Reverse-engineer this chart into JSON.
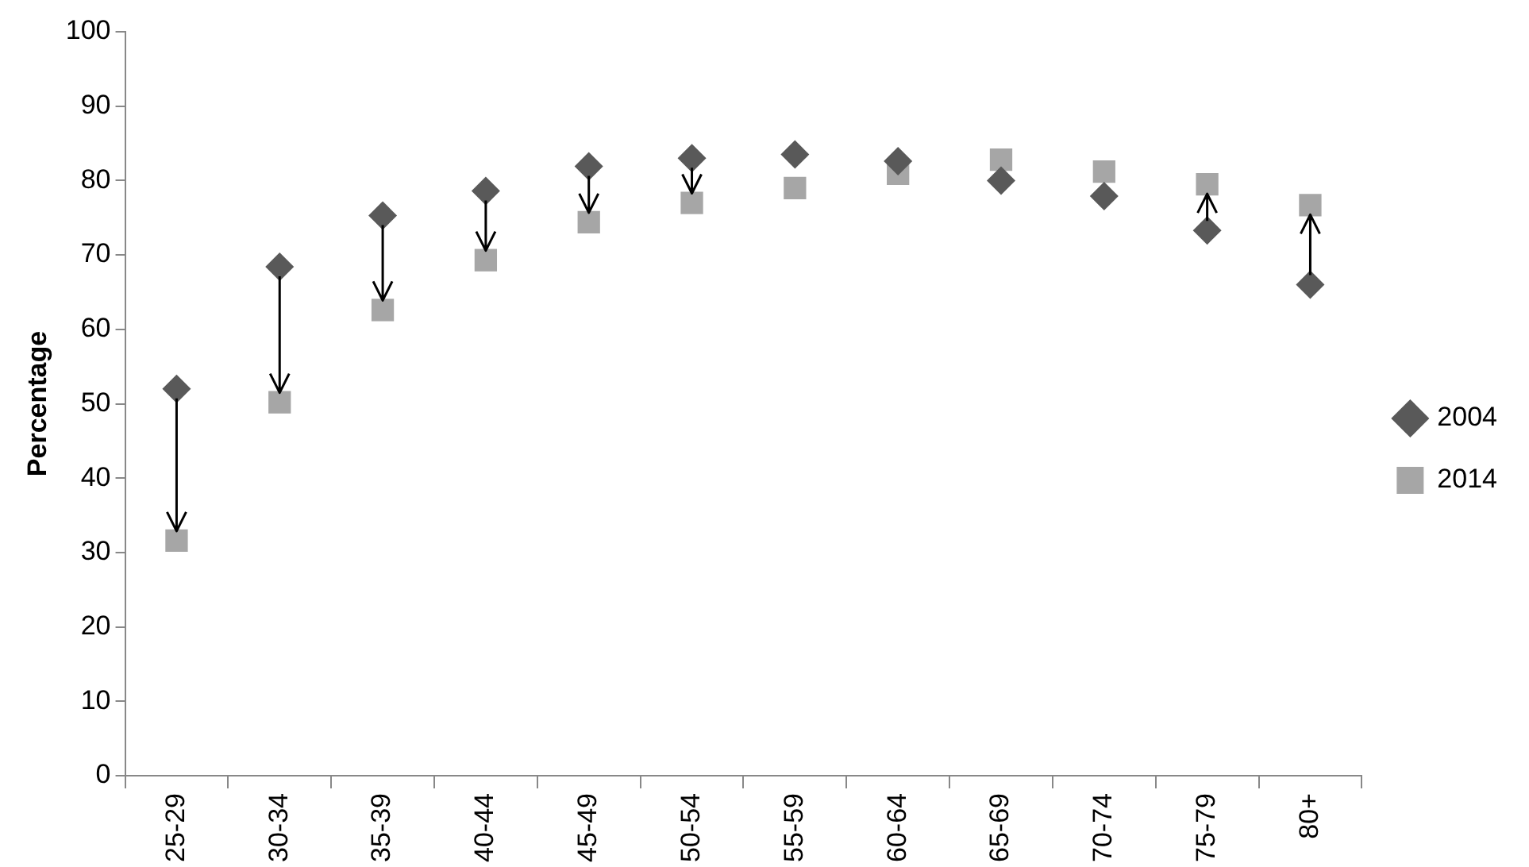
{
  "chart_data": {
    "type": "scatter",
    "ylabel": "Percentage",
    "categories": [
      "25-29",
      "30-34",
      "35-39",
      "40-44",
      "45-49",
      "50-54",
      "55-59",
      "60-64",
      "65-69",
      "70-74",
      "75-79",
      "80+"
    ],
    "series": [
      {
        "name": "2004",
        "color": "#595959",
        "marker": "diamond",
        "values": [
          52,
          68.4,
          75.3,
          78.6,
          81.9,
          83,
          83.5,
          82.6,
          80,
          77.9,
          73.3,
          66
        ]
      },
      {
        "name": "2014",
        "color": "#a6a6a6",
        "marker": "square",
        "values": [
          31.6,
          50.2,
          62.6,
          69.3,
          74.4,
          77,
          79,
          80.9,
          82.8,
          81.2,
          79.5,
          76.7
        ]
      }
    ],
    "ylim": [
      0,
      100
    ],
    "yticks": [
      0,
      10,
      20,
      30,
      40,
      50,
      60,
      70,
      80,
      90,
      100
    ],
    "grid": false,
    "legend": "right"
  }
}
